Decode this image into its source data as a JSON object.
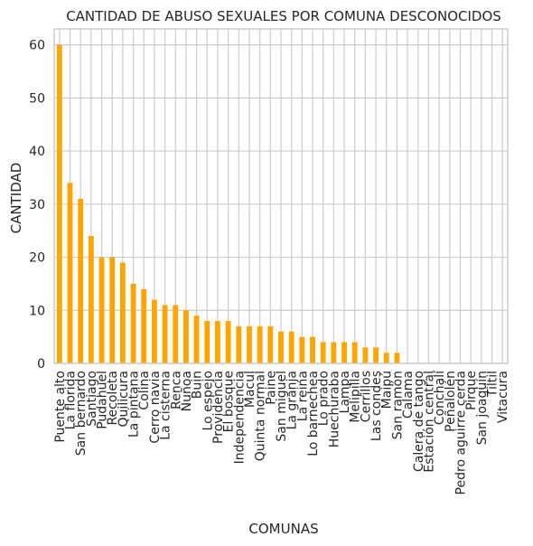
{
  "chart_data": {
    "type": "bar",
    "title": "CANTIDAD DE ABUSO SEXUALES POR COMUNA DESCONOCIDOS",
    "xlabel": "COMUNAS",
    "ylabel": "CANTIDAD",
    "ylim": [
      0,
      63
    ],
    "yticks": [
      0,
      10,
      20,
      30,
      40,
      50,
      60
    ],
    "grid": true,
    "bar_color": "#ffa500",
    "categories": [
      "Puente alto",
      "La florida",
      "San bernardo",
      "Santiago",
      "Pudahuel",
      "Recoleta",
      "Quilicura",
      "La pintana",
      "Colina",
      "Cerro navia",
      "La cisterna",
      "Renca",
      "Ñuñoa",
      "Buin",
      "Lo espejo",
      "Providencia",
      "El bosque",
      "Independencia",
      "Macul",
      "Quinta normal",
      "Paine",
      "San miguel",
      "La granja",
      "La reina",
      "Lo barnechea",
      "Lo prado",
      "Huechuraba",
      "Lampa",
      "Melipilla",
      "Cerrillos",
      "Las condes",
      "Maipú",
      "San ramón",
      "Calama",
      "Calera de tango",
      "Estación central",
      "Conchalí",
      "Peñalolén",
      "Pedro aguirre cerda",
      "Pirque",
      "San joaquín",
      "Tiltil",
      "Vitacura"
    ],
    "values": [
      60,
      34,
      31,
      24,
      20,
      20,
      19,
      15,
      14,
      12,
      11,
      11,
      10,
      9,
      8,
      8,
      8,
      7,
      7,
      7,
      7,
      6,
      6,
      5,
      5,
      4,
      4,
      4,
      4,
      3,
      3,
      2,
      2,
      0,
      0,
      0,
      0,
      0,
      0,
      0,
      0,
      0,
      0
    ]
  }
}
